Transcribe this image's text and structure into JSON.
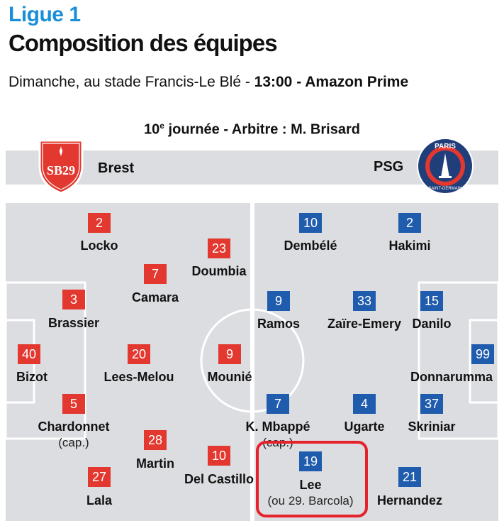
{
  "header": {
    "league": "Ligue 1",
    "title": "Composition des équipes",
    "subtitle_pre": "Dimanche, au stade Francis-Le Blé - ",
    "subtitle_time": "13:00",
    "subtitle_sep": " - ",
    "subtitle_tv": "Amazon Prime",
    "round_num": "10",
    "round_sup": "e",
    "round_rest": " journée - Arbitre : M. Brisard"
  },
  "teams": {
    "home": {
      "name": "Brest",
      "crest_text": "SB29",
      "color": "#e2382f",
      "crest_icon": "brest-crest-icon"
    },
    "away": {
      "name": "PSG",
      "crest_text": "PARIS",
      "crest_sub": "SAINT-GERMAIN",
      "color": "#1f5cad",
      "crest_icon": "psg-crest-icon"
    }
  },
  "home_players": [
    {
      "number": "2",
      "name": "Locko"
    },
    {
      "number": "23",
      "name": "Doumbia"
    },
    {
      "number": "7",
      "name": "Camara"
    },
    {
      "number": "3",
      "name": "Brassier"
    },
    {
      "number": "40",
      "name": "Bizot"
    },
    {
      "number": "20",
      "name": "Lees-Melou"
    },
    {
      "number": "9",
      "name": "Mounié"
    },
    {
      "number": "5",
      "name": "Chardonnet",
      "note": "(cap.)"
    },
    {
      "number": "28",
      "name": "Martin"
    },
    {
      "number": "10",
      "name": "Del Castillo"
    },
    {
      "number": "27",
      "name": "Lala"
    }
  ],
  "away_players": [
    {
      "number": "10",
      "name": "Dembélé"
    },
    {
      "number": "2",
      "name": "Hakimi"
    },
    {
      "number": "9",
      "name": "Ramos"
    },
    {
      "number": "33",
      "name": "Zaïre-Emery"
    },
    {
      "number": "15",
      "name": "Danilo"
    },
    {
      "number": "99",
      "name": "Donnarumma"
    },
    {
      "number": "7",
      "name": "K. Mbappé",
      "note": "(cap.)"
    },
    {
      "number": "4",
      "name": "Ugarte"
    },
    {
      "number": "37",
      "name": "Skriniar"
    },
    {
      "number": "19",
      "name": "Lee",
      "note": "(ou 29. Barcola)"
    },
    {
      "number": "21",
      "name": "Hernandez"
    }
  ]
}
